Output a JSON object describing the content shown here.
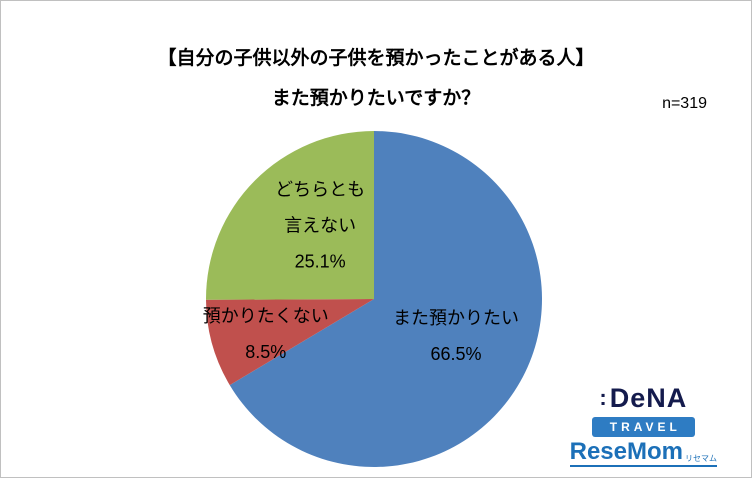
{
  "title": {
    "line1": "【自分の子供以外の子供を預かったことがある人】",
    "line2": "また預かりたいですか？"
  },
  "sample_size_label": "n=319",
  "chart_data": {
    "type": "pie",
    "title": "【自分の子供以外の子供を預かったことがある人】また預かりたいですか？",
    "sample_size": 319,
    "start_angle_deg": 0,
    "direction": "clockwise",
    "slices": [
      {
        "label": "また預かりたい",
        "value": 66.5,
        "percent_label": "66.5%",
        "color": "#4F81BD",
        "label_lines": [
          "また預かりたい",
          "66.5%"
        ]
      },
      {
        "label": "預かりたくない",
        "value": 8.5,
        "percent_label": "8.5%",
        "color": "#C0504D",
        "label_lines": [
          "預かりたくない",
          "8.5%"
        ]
      },
      {
        "label": "どちらとも言えない",
        "value": 25.1,
        "percent_label": "25.1%",
        "color": "#9BBB59",
        "label_lines": [
          "どちらとも",
          "言えない",
          "25.1%"
        ]
      }
    ]
  },
  "logos": {
    "dena_colon": ":",
    "dena": "DeNA",
    "travel": "TRAVEL",
    "resemom": "ReseMom",
    "resemom_kana": "リセマム"
  }
}
